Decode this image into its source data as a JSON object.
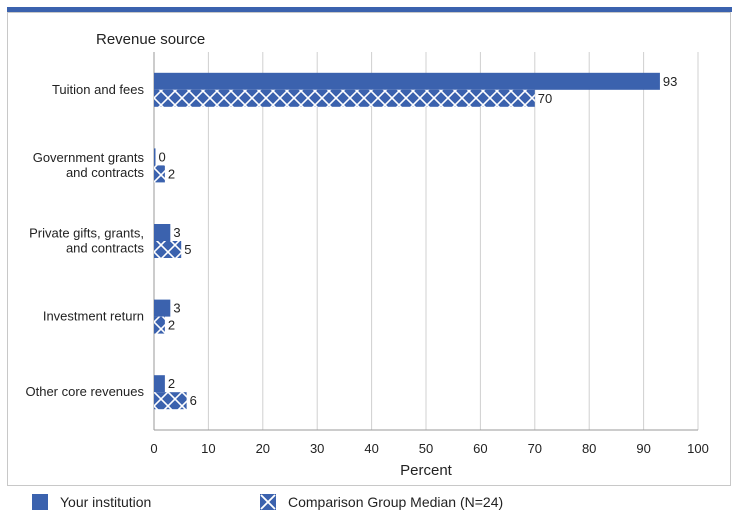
{
  "chart_data": {
    "type": "bar",
    "orientation": "horizontal",
    "ylabel": "Revenue source",
    "xlabel": "Percent",
    "xlim": [
      0,
      100
    ],
    "xticks": [
      "0",
      "10",
      "20",
      "30",
      "40",
      "50",
      "60",
      "70",
      "80",
      "90",
      "100"
    ],
    "grid": true,
    "legend_position": "bottom",
    "categories": [
      [
        "Tuition and fees"
      ],
      [
        "Government grants",
        "and contracts"
      ],
      [
        "Private gifts, grants,",
        "and contracts"
      ],
      [
        "Investment return"
      ],
      [
        "Other core revenues"
      ]
    ],
    "series": [
      {
        "name": "Your institution",
        "values": [
          93,
          0,
          3,
          3,
          2
        ],
        "pattern": "solid",
        "color": "#3b62ae"
      },
      {
        "name": "Comparison Group Median (N=24)",
        "values": [
          70,
          2,
          5,
          2,
          6
        ],
        "pattern": "crosshatch",
        "color": "#3b62ae"
      }
    ],
    "value_labels": [
      [
        "93",
        "0",
        "3",
        "3",
        "2"
      ],
      [
        "70",
        "2",
        "5",
        "2",
        "6"
      ]
    ]
  }
}
